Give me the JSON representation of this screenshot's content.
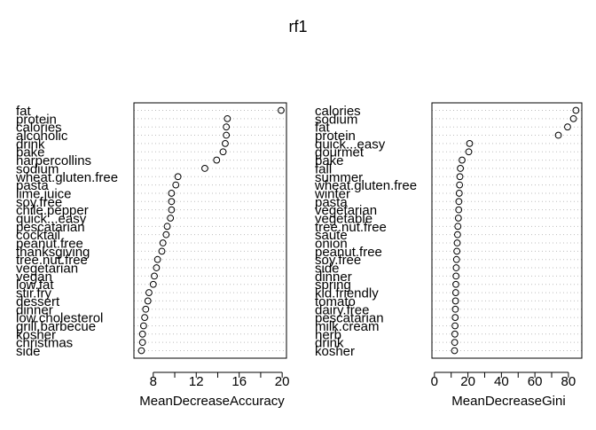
{
  "title": "rf1",
  "chart_data": [
    {
      "type": "dotchart",
      "xlabel": "MeanDecreaseAccuracy",
      "xlim": [
        6.2,
        20.4
      ],
      "xticks": [
        8,
        12,
        16,
        20
      ],
      "grid": "dotted",
      "labels": [
        "fat",
        "protein",
        "calories",
        "alcoholic",
        "drink",
        "bake",
        "harpercollins",
        "sodium",
        "wheat.gluten.free",
        "pasta",
        "lime.juice",
        "soy.free",
        "chile.pepper",
        "quick...easy",
        "pescatarian",
        "cocktail",
        "peanut.free",
        "thanksgiving",
        "tree.nut.free",
        "vegetarian",
        "vegan",
        "low.fat",
        "stir.fry",
        "dessert",
        "dinner",
        "low.cholesterol",
        "grill.barbecue",
        "kosher",
        "christmas",
        "side"
      ],
      "values": [
        19.9,
        14.9,
        14.8,
        14.8,
        14.7,
        14.5,
        13.9,
        12.8,
        10.3,
        10.1,
        9.7,
        9.7,
        9.7,
        9.6,
        9.3,
        9.2,
        8.9,
        8.8,
        8.4,
        8.3,
        8.1,
        8.0,
        7.6,
        7.5,
        7.3,
        7.2,
        7.1,
        7.0,
        7.0,
        6.9
      ]
    },
    {
      "type": "dotchart",
      "xlabel": "MeanDecreaseGini",
      "xlim": [
        -1.5,
        88
      ],
      "xticks": [
        0,
        20,
        40,
        60,
        80
      ],
      "grid": "dotted",
      "labels": [
        "calories",
        "sodium",
        "fat",
        "protein",
        "quick...easy",
        "gourmet",
        "bake",
        "fall",
        "summer",
        "wheat.gluten.free",
        "winter",
        "pasta",
        "vegetarian",
        "vegetable",
        "tree.nut.free",
        "saute",
        "onion",
        "peanut.free",
        "soy.free",
        "side",
        "dinner",
        "spring",
        "kid.friendly",
        "tomato",
        "dairy.free",
        "pescatarian",
        "milk.cream",
        "herb",
        "drink",
        "kosher"
      ],
      "values": [
        84.5,
        83.0,
        79.5,
        74.0,
        21.0,
        20.5,
        16.5,
        15.5,
        15.2,
        15.0,
        14.8,
        14.6,
        14.5,
        14.3,
        14.0,
        13.8,
        13.6,
        13.4,
        13.2,
        13.0,
        12.9,
        12.8,
        12.7,
        12.6,
        12.5,
        12.4,
        12.3,
        12.2,
        12.1,
        12.0
      ]
    }
  ]
}
